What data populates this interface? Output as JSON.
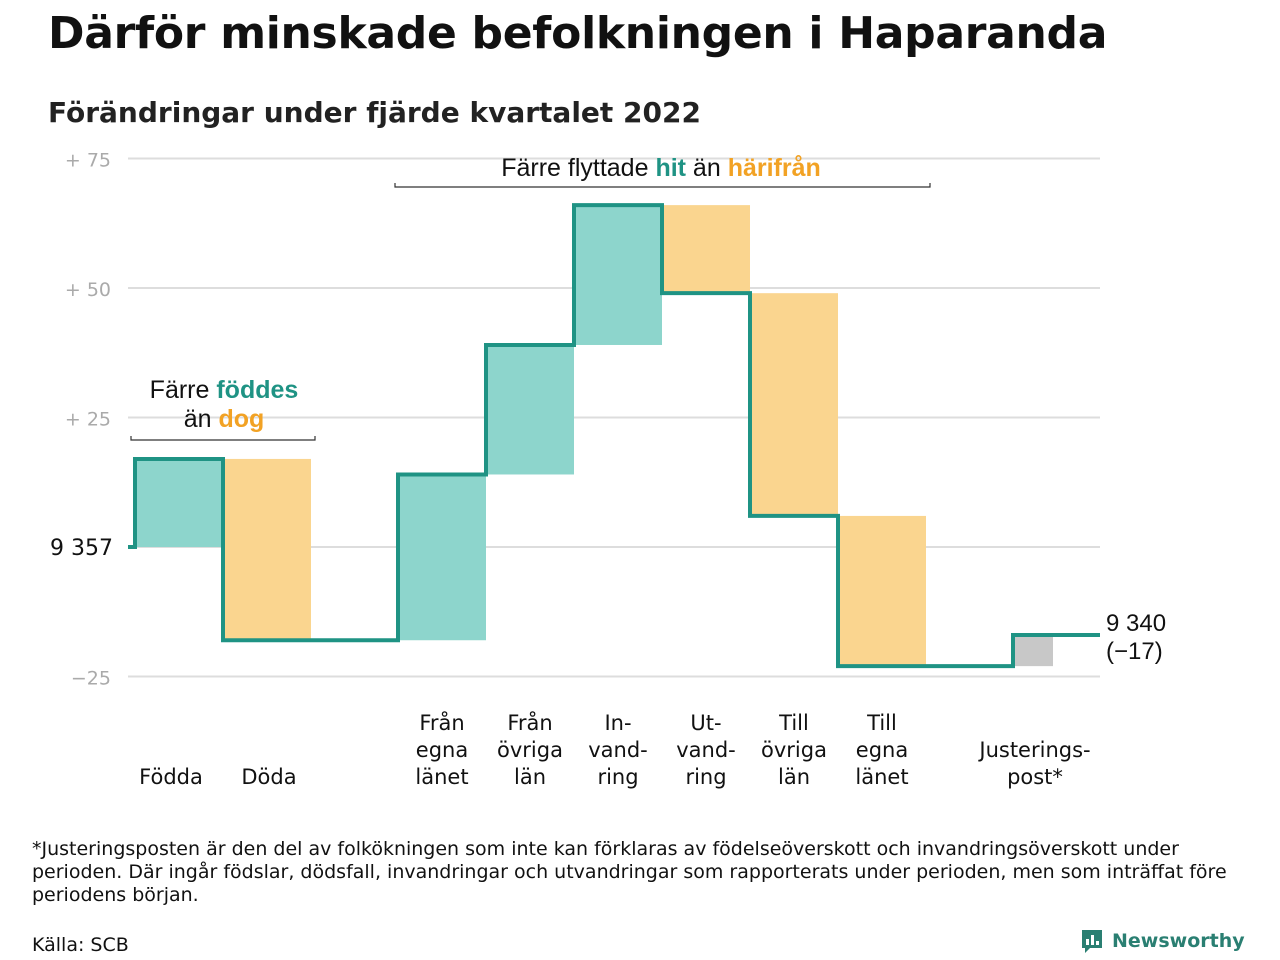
{
  "title": "Därför minskade befolkningen i Haparanda",
  "subtitle": "Förändringar under fjärde kvartalet 2022",
  "colors": {
    "positive": "#8dd5cc",
    "negative": "#fad58f",
    "adjustment": "#c8c8c8",
    "line": "#1f9384",
    "teal_text": "#1f9384",
    "orange_text": "#f2a224",
    "grid": "#dddddd",
    "axis_text": "#aaaaaa"
  },
  "annotations": {
    "births": {
      "prefix": "Färre ",
      "highlight1": "föddes",
      "middle": "än ",
      "highlight2": "dog"
    },
    "migration": {
      "prefix": "Färre flyttade ",
      "highlight1": "hit",
      "middle": " än ",
      "highlight2": "härifrån"
    }
  },
  "chart_data": {
    "type": "waterfall",
    "start_label": "9 357",
    "end_label": "9 340",
    "end_change_label": "(−17)",
    "start_value": 0,
    "yticks": [
      {
        "value": 75,
        "label": "+ 75"
      },
      {
        "value": 50,
        "label": "+ 50"
      },
      {
        "value": 25,
        "label": "+ 25"
      },
      {
        "value": 0,
        "label": "9 357"
      },
      {
        "value": -25,
        "label": "−25"
      }
    ],
    "ylim": [
      -25,
      75
    ],
    "steps": [
      {
        "label": "Födda",
        "change": 17,
        "kind": "positive"
      },
      {
        "label": "Döda",
        "change": -35,
        "kind": "negative"
      },
      {
        "label": "Från\negna\nlänet",
        "change": 32,
        "kind": "positive"
      },
      {
        "label": "Från\növriga\nlän",
        "change": 25,
        "kind": "positive"
      },
      {
        "label": "In-\nvand-\nring",
        "change": 27,
        "kind": "positive"
      },
      {
        "label": "Ut-\nvand-\nring",
        "change": -17,
        "kind": "negative"
      },
      {
        "label": "Till\növriga\nlän",
        "change": -43,
        "kind": "negative"
      },
      {
        "label": "Till\negna\nlänet",
        "change": -29,
        "kind": "negative"
      },
      {
        "label": "Justerings-\npost*",
        "change": 6,
        "kind": "adjustment"
      }
    ]
  },
  "footnote": "*Justeringsposten är den del av folkökningen som inte kan förklaras av födelseöverskott och invandringsöverskott under perioden. Där ingår födslar, dödsfall, invandringar och utvandringar som rapporterats under perioden, men som inträffat före periodens början.",
  "source": "Källa: SCB",
  "brand": {
    "name": "Newsworthy",
    "icon": "newsworthy-logo-icon"
  }
}
